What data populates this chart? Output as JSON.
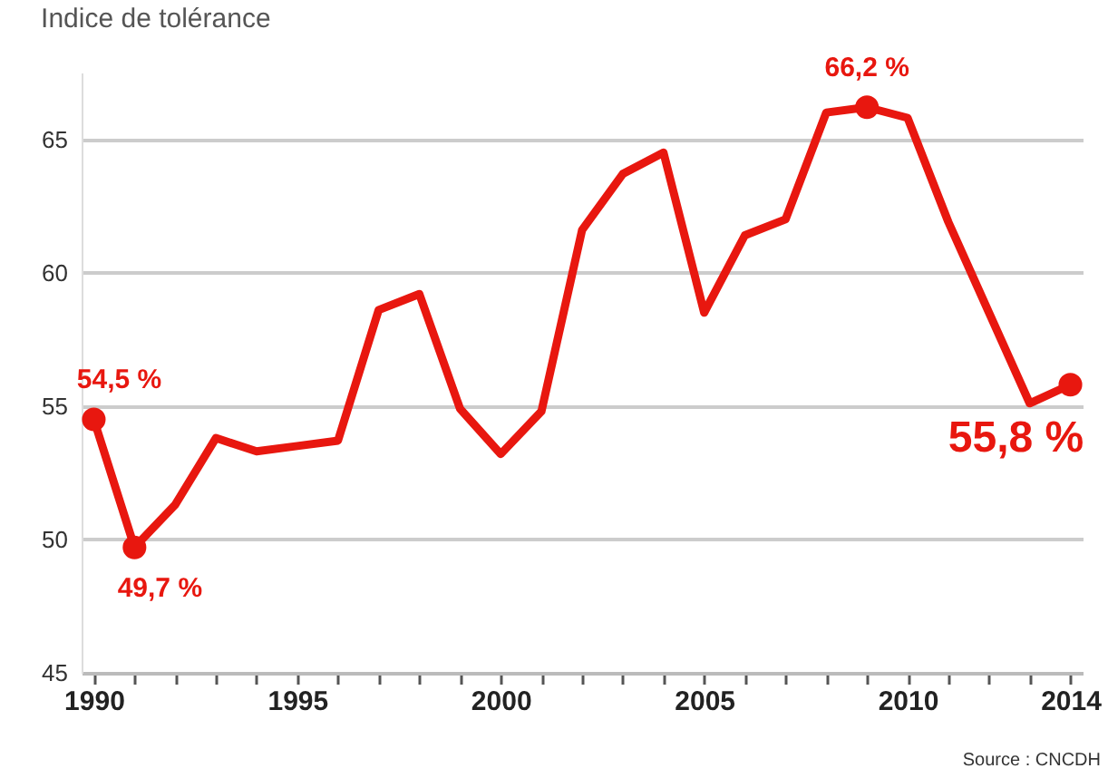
{
  "chart_data": {
    "type": "line",
    "title": "Indice de tolérance",
    "x": [
      1990,
      1991,
      1992,
      1993,
      1994,
      1995,
      1996,
      1997,
      1998,
      1999,
      2000,
      2001,
      2002,
      2003,
      2004,
      2005,
      2006,
      2007,
      2008,
      2009,
      2010,
      2011,
      2012,
      2013,
      2014
    ],
    "series": [
      {
        "color": "#e8170f",
        "values": [
          54.5,
          49.7,
          51.3,
          53.8,
          53.3,
          53.5,
          53.7,
          58.6,
          59.2,
          54.9,
          53.2,
          54.8,
          61.6,
          63.7,
          64.5,
          58.5,
          61.4,
          62.0,
          66.0,
          66.2,
          65.8,
          61.9,
          58.5,
          55.1,
          55.8
        ]
      }
    ],
    "xlim": [
      1989.7,
      2014.3
    ],
    "xticks": [
      1990,
      {
        "value": 1991,
        "label": null
      },
      {
        "value": 1992,
        "label": null
      },
      {
        "value": 1993,
        "label": null
      },
      {
        "value": 1994,
        "label": null
      },
      1995,
      {
        "value": 1996,
        "label": null
      },
      {
        "value": 1997,
        "label": null
      },
      {
        "value": 1998,
        "label": null
      },
      {
        "value": 1999,
        "label": null
      },
      2000,
      {
        "value": 2001,
        "label": null
      },
      {
        "value": 2002,
        "label": null
      },
      {
        "value": 2003,
        "label": null
      },
      {
        "value": 2004,
        "label": null
      },
      2005,
      {
        "value": 2006,
        "label": null
      },
      {
        "value": 2007,
        "label": null
      },
      {
        "value": 2008,
        "label": null
      },
      {
        "value": 2009,
        "label": null
      },
      2010,
      {
        "value": 2011,
        "label": null
      },
      {
        "value": 2012,
        "label": null
      },
      {
        "value": 2013,
        "label": null
      },
      2014
    ],
    "ylim": [
      45,
      67.5
    ],
    "yticks": [
      45,
      50,
      55,
      60,
      65
    ],
    "grid": "y",
    "marker": "none",
    "line_style": "solid",
    "annotations": [
      {
        "text": "54,5 %",
        "x": 1990,
        "y": 54.5
      },
      {
        "text": "49,7 %",
        "x": 1991,
        "y": 49.7
      },
      {
        "text": "66,2 %",
        "x": 2009,
        "y": 66.2
      },
      {
        "text": "55,8 %",
        "x": 2014,
        "y": 55.8
      },
      "Source : CNCDH"
    ]
  }
}
